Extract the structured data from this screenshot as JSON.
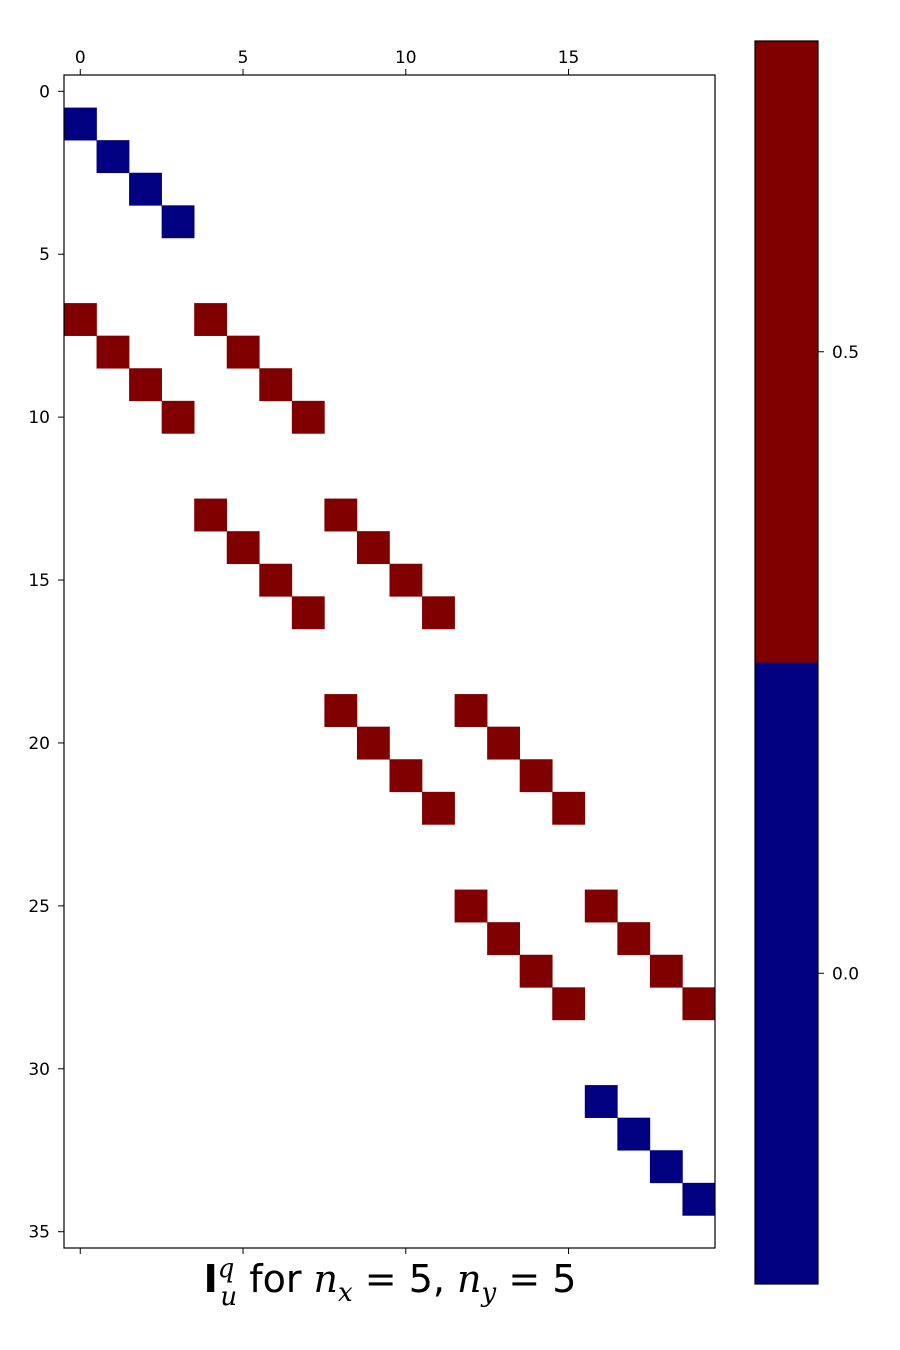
{
  "chart_data": {
    "type": "heatmap",
    "title": {
      "symbol": "I",
      "superscript": "q",
      "subscript": "u",
      "text": " for ",
      "nx_var": "n",
      "nx_sub": "x",
      "nx_val": " = 5, ",
      "ny_var": "n",
      "ny_sub": "y",
      "ny_val": " = 5"
    },
    "n_rows": 35,
    "n_cols": 20,
    "x_ticks": [
      0,
      5,
      10,
      15
    ],
    "y_ticks": [
      0,
      5,
      10,
      15,
      20,
      25,
      30,
      35
    ],
    "colors": {
      "low": "#000080",
      "high": "#800000",
      "axis": "#000000"
    },
    "colorbar": {
      "range": [
        -0.25,
        0.75
      ],
      "boundary": 0.25,
      "ticks": [
        0.0,
        0.5
      ],
      "tick_labels": [
        "0.0",
        "0.5"
      ]
    },
    "cells": [
      {
        "row": 0,
        "col": 0,
        "value": 0.0
      },
      {
        "row": 1,
        "col": 1,
        "value": 0.0
      },
      {
        "row": 2,
        "col": 2,
        "value": 0.0
      },
      {
        "row": 3,
        "col": 3,
        "value": 0.0
      },
      {
        "row": 6,
        "col": 0,
        "value": 0.5
      },
      {
        "row": 6,
        "col": 4,
        "value": 0.5
      },
      {
        "row": 7,
        "col": 1,
        "value": 0.5
      },
      {
        "row": 7,
        "col": 5,
        "value": 0.5
      },
      {
        "row": 8,
        "col": 2,
        "value": 0.5
      },
      {
        "row": 8,
        "col": 6,
        "value": 0.5
      },
      {
        "row": 9,
        "col": 3,
        "value": 0.5
      },
      {
        "row": 9,
        "col": 7,
        "value": 0.5
      },
      {
        "row": 12,
        "col": 4,
        "value": 0.5
      },
      {
        "row": 12,
        "col": 8,
        "value": 0.5
      },
      {
        "row": 13,
        "col": 5,
        "value": 0.5
      },
      {
        "row": 13,
        "col": 9,
        "value": 0.5
      },
      {
        "row": 14,
        "col": 6,
        "value": 0.5
      },
      {
        "row": 14,
        "col": 10,
        "value": 0.5
      },
      {
        "row": 15,
        "col": 7,
        "value": 0.5
      },
      {
        "row": 15,
        "col": 11,
        "value": 0.5
      },
      {
        "row": 18,
        "col": 8,
        "value": 0.5
      },
      {
        "row": 18,
        "col": 12,
        "value": 0.5
      },
      {
        "row": 19,
        "col": 9,
        "value": 0.5
      },
      {
        "row": 19,
        "col": 13,
        "value": 0.5
      },
      {
        "row": 20,
        "col": 10,
        "value": 0.5
      },
      {
        "row": 20,
        "col": 14,
        "value": 0.5
      },
      {
        "row": 21,
        "col": 11,
        "value": 0.5
      },
      {
        "row": 21,
        "col": 15,
        "value": 0.5
      },
      {
        "row": 24,
        "col": 12,
        "value": 0.5
      },
      {
        "row": 24,
        "col": 16,
        "value": 0.5
      },
      {
        "row": 25,
        "col": 13,
        "value": 0.5
      },
      {
        "row": 25,
        "col": 17,
        "value": 0.5
      },
      {
        "row": 26,
        "col": 14,
        "value": 0.5
      },
      {
        "row": 26,
        "col": 18,
        "value": 0.5
      },
      {
        "row": 27,
        "col": 15,
        "value": 0.5
      },
      {
        "row": 27,
        "col": 19,
        "value": 0.5
      },
      {
        "row": 30,
        "col": 16,
        "value": 0.0
      },
      {
        "row": 31,
        "col": 17,
        "value": 0.0
      },
      {
        "row": 32,
        "col": 18,
        "value": 0.0
      },
      {
        "row": 33,
        "col": 19,
        "value": 0.0
      }
    ]
  }
}
